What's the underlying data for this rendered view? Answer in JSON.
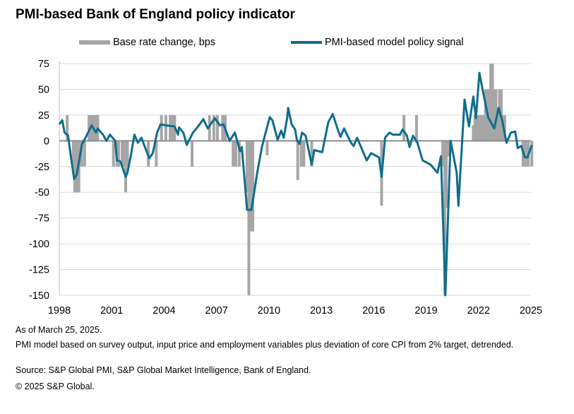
{
  "chart_data": {
    "type": "line",
    "title": "PMI-based Bank of England policy indicator",
    "xlabel": "",
    "ylabel": "",
    "xlim": [
      1998,
      2025
    ],
    "ylim": [
      -150,
      75
    ],
    "yticks": [
      75,
      50,
      25,
      0,
      -25,
      -50,
      -75,
      -100,
      -125,
      -150
    ],
    "xticks": [
      1998,
      2001,
      2004,
      2007,
      2010,
      2013,
      2016,
      2019,
      2022,
      2025
    ],
    "grid": true,
    "legend_placement": "top",
    "colors": {
      "base_rate": "#a6a6a6",
      "model": "#0e6d8c",
      "grid": "#d9d9d9",
      "zero": "#8c8c8c"
    },
    "series": [
      {
        "name": "Base rate change, bps",
        "kind": "column",
        "x": [
          1998.45,
          1998.8,
          1998.88,
          1998.96,
          1999.04,
          1999.12,
          1999.28,
          1999.45,
          1999.7,
          1999.85,
          2000.0,
          2000.1,
          2000.2,
          2001.1,
          2001.3,
          2001.4,
          2001.6,
          2001.7,
          2001.8,
          2001.9,
          2003.1,
          2003.55,
          2003.85,
          2004.1,
          2004.35,
          2004.45,
          2004.6,
          2005.6,
          2006.6,
          2006.85,
          2007.05,
          2007.35,
          2007.5,
          2007.95,
          2008.1,
          2008.3,
          2008.75,
          2008.85,
          2008.93,
          2009.0,
          2009.08,
          2009.9,
          2011.65,
          2011.85,
          2012.0,
          2012.45,
          2016.45,
          2017.73,
          2018.45,
          2019.95,
          2020.07,
          2020.15,
          2020.25,
          2021.7,
          2021.8,
          2021.9,
          2022.0,
          2022.1,
          2022.2,
          2022.3,
          2022.4,
          2022.5,
          2022.6,
          2022.7,
          2022.8,
          2022.9,
          2023.0,
          2023.1,
          2023.2,
          2023.3,
          2023.4,
          2023.5,
          2024.55,
          2024.7,
          2024.85,
          2025.05
        ],
        "values": [
          25,
          -25,
          -50,
          -50,
          -50,
          -50,
          -25,
          -25,
          25,
          25,
          25,
          25,
          25,
          -25,
          -25,
          -25,
          -25,
          -25,
          -50,
          -25,
          -25,
          -25,
          25,
          25,
          25,
          25,
          25,
          -25,
          25,
          25,
          25,
          25,
          25,
          -25,
          -25,
          -25,
          -50,
          -150,
          -50,
          -88,
          -88,
          -14,
          -38,
          -25,
          -25,
          -25,
          -63,
          25,
          25,
          -25,
          -150,
          -65,
          -15,
          15,
          25,
          25,
          25,
          25,
          25,
          25,
          50,
          50,
          50,
          75,
          75,
          50,
          50,
          25,
          50,
          50,
          25,
          25,
          -25,
          -25,
          -25,
          -25
        ]
      },
      {
        "name": "PMI-based model policy signal",
        "kind": "line",
        "x": [
          1998.0,
          1998.17,
          1998.3,
          1998.5,
          1998.65,
          1998.85,
          1999.0,
          1999.3,
          1999.5,
          1999.85,
          2000.1,
          2000.2,
          2000.5,
          2000.7,
          2000.9,
          2001.2,
          2001.3,
          2001.5,
          2001.8,
          2001.9,
          2002.1,
          2002.3,
          2002.5,
          2002.7,
          2003.15,
          2003.35,
          2003.6,
          2003.8,
          2004.1,
          2004.6,
          2004.8,
          2004.85,
          2005.1,
          2005.3,
          2005.65,
          2005.9,
          2006.25,
          2006.5,
          2006.9,
          2007.2,
          2007.4,
          2007.75,
          2008.05,
          2008.35,
          2008.45,
          2008.75,
          2009.0,
          2009.35,
          2009.6,
          2009.75,
          2010.05,
          2010.2,
          2010.5,
          2010.7,
          2010.85,
          2011.05,
          2011.1,
          2011.3,
          2011.5,
          2011.6,
          2011.75,
          2011.9,
          2012.1,
          2012.45,
          2012.6,
          2013.05,
          2013.4,
          2013.65,
          2014.0,
          2014.1,
          2014.3,
          2014.7,
          2014.85,
          2015.05,
          2015.6,
          2015.85,
          2016.3,
          2016.45,
          2016.65,
          2016.9,
          2017.1,
          2017.5,
          2017.65,
          2017.9,
          2018.05,
          2018.25,
          2018.5,
          2018.8,
          2019.25,
          2019.65,
          2019.85,
          2020.1,
          2020.4,
          2020.75,
          2020.85,
          2021.2,
          2021.45,
          2021.7,
          2021.85,
          2022.05,
          2022.25,
          2022.55,
          2022.9,
          2023.15,
          2023.35,
          2023.6,
          2023.85,
          2024.1,
          2024.25,
          2024.45,
          2024.65,
          2024.8,
          2025.05
        ],
        "values": [
          16,
          20,
          8,
          5,
          -14,
          -37,
          -33,
          -3,
          3,
          15,
          8,
          12,
          6,
          0,
          6,
          0,
          -19,
          -20,
          -35,
          -31,
          -14,
          6,
          -2,
          3,
          -17,
          -12,
          8,
          16,
          15,
          14,
          6,
          13,
          8,
          -4,
          8,
          13,
          21,
          12,
          22,
          15,
          16,
          0,
          8,
          -10,
          -6,
          -67,
          -67,
          -29,
          -6,
          4,
          23,
          20,
          1,
          10,
          3,
          23,
          32,
          16,
          11,
          1,
          -3,
          8,
          5,
          -23,
          -9,
          -11,
          18,
          26,
          8,
          4,
          12,
          -2,
          -5,
          3,
          -19,
          -12,
          -16,
          -35,
          3,
          8,
          6,
          6,
          11,
          5,
          -6,
          5,
          -2,
          -19,
          -23,
          -31,
          -15,
          -151,
          0,
          -31,
          -63,
          40,
          14,
          43,
          22,
          66,
          48,
          23,
          12,
          32,
          20,
          -2,
          8,
          9,
          -7,
          -5,
          -16,
          -16,
          -4
        ]
      }
    ]
  },
  "notes": {
    "as_of": "As of March 25, 2025.",
    "model": "PMI model based on survey output, input price and employment variables plus deviation of core CPI from 2% target, detrended.",
    "source": "Source: S&P Global PMI, S&P Global Market Intelligence, Bank of England.",
    "copyright": "© 2025 S&P Global."
  }
}
